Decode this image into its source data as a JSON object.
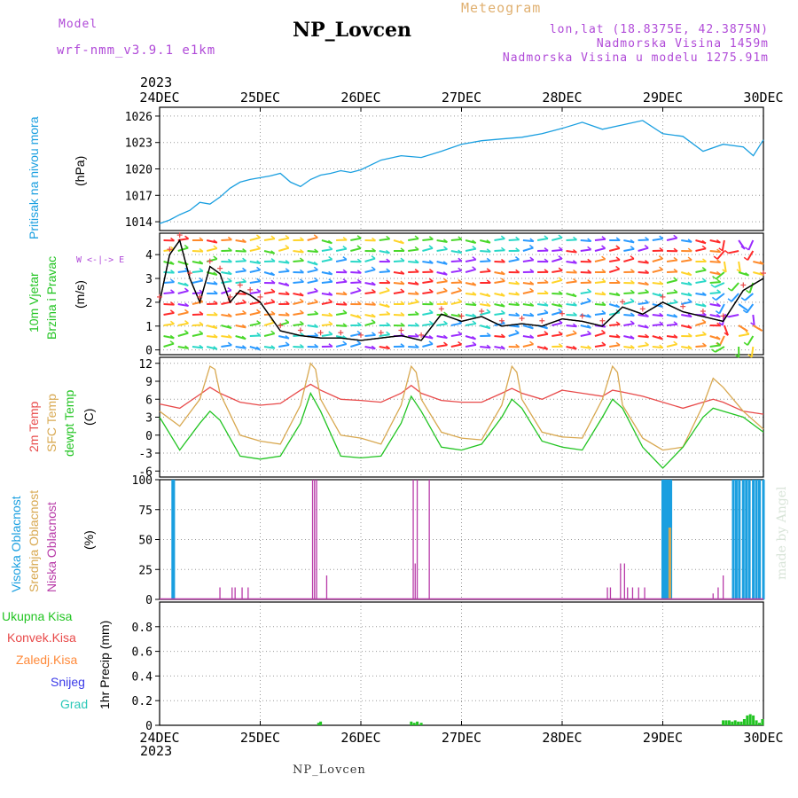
{
  "header": {
    "model_label": "Model",
    "model_name": "wrf-nmm_v3.9.1 e1km",
    "station_title": "NP_Lovcen",
    "meteogram_label": "Meteogram",
    "lonlat": "lon,lat (18.8375E, 42.3875N)",
    "elevation": "Nadmorska Visina 1459m",
    "model_elevation": "Nadmorska Visina u modelu 1275.91m"
  },
  "footer": {
    "station": "NP_Lovcen",
    "signature": "made by Angel"
  },
  "time_axis": {
    "year": "2023",
    "ticks": [
      "24DEC",
      "25DEC",
      "26DEC",
      "27DEC",
      "28DEC",
      "29DEC",
      "30DEC"
    ]
  },
  "colors": {
    "pressure": "#1a9fe0",
    "temp2m": "#e84a4a",
    "sfc_temp": "#d8a850",
    "dewpt": "#22c422",
    "high_cloud": "#1a9fe0",
    "mid_cloud": "#d8a850",
    "low_cloud": "#b83aa8",
    "precip": "#22c422"
  },
  "panels": {
    "pressure": {
      "labels": [
        "Pritisak na nivou mora",
        "(hPa)"
      ]
    },
    "wind": {
      "labels": [
        "10m Vjetar",
        "Brzina i Pravac",
        "(m/s)"
      ],
      "compass": "W <-|-> E"
    },
    "temperature": {
      "labels": [
        "2m Temp",
        "SFC Temp",
        "dewpt Temp",
        "(C)"
      ]
    },
    "cloud": {
      "labels": [
        "Visoka Oblacnost",
        "Srednja Oblacnost",
        "Niska Oblacnost",
        "(%)"
      ]
    },
    "precip": {
      "labels": [
        "Ukupna Kisa",
        "Konvek.Kisa",
        "Zaledj.Kisa",
        "Snijeg",
        "Grad",
        "1hr Precip (mm)"
      ]
    }
  },
  "chart_data": [
    {
      "type": "line",
      "panel": "pressure",
      "ylabel": "(hPa)",
      "ylim": [
        1013,
        1027
      ],
      "yticks": [
        1014,
        1017,
        1020,
        1023,
        1026
      ],
      "grid": true,
      "x_unit": "days since 24DEC 00UTC",
      "series": [
        {
          "name": "Pritisak na nivou mora",
          "color": "#1a9fe0",
          "x": [
            0,
            0.1,
            0.2,
            0.3,
            0.4,
            0.5,
            0.6,
            0.7,
            0.8,
            0.9,
            1.0,
            1.1,
            1.2,
            1.3,
            1.4,
            1.5,
            1.6,
            1.7,
            1.8,
            1.9,
            2.0,
            2.2,
            2.4,
            2.6,
            2.8,
            3.0,
            3.2,
            3.4,
            3.6,
            3.8,
            4.0,
            4.2,
            4.4,
            4.6,
            4.8,
            5.0,
            5.2,
            5.4,
            5.6,
            5.8,
            5.9,
            6.0
          ],
          "values": [
            1013.8,
            1014.2,
            1014.8,
            1015.3,
            1016.2,
            1016.0,
            1016.8,
            1017.8,
            1018.5,
            1018.8,
            1019.0,
            1019.2,
            1019.5,
            1018.5,
            1018.0,
            1018.8,
            1019.3,
            1019.5,
            1019.8,
            1019.6,
            1019.9,
            1021.0,
            1021.5,
            1021.3,
            1022.0,
            1022.8,
            1023.2,
            1023.4,
            1023.6,
            1024.0,
            1024.6,
            1025.3,
            1024.5,
            1025.0,
            1025.5,
            1024.0,
            1023.7,
            1022.0,
            1022.8,
            1022.5,
            1021.5,
            1023.3
          ]
        }
      ]
    },
    {
      "type": "line",
      "panel": "wind",
      "ylabel": "(m/s)",
      "ylim": [
        -0.2,
        4.9
      ],
      "yticks": [
        0,
        1,
        2,
        3,
        4
      ],
      "grid": true,
      "x_unit": "days since 24DEC 00UTC",
      "series": [
        {
          "name": "wind speed",
          "color": "#000000",
          "x": [
            0,
            0.1,
            0.2,
            0.3,
            0.4,
            0.5,
            0.6,
            0.7,
            0.8,
            0.9,
            1.0,
            1.2,
            1.4,
            1.6,
            1.8,
            2.0,
            2.2,
            2.4,
            2.6,
            2.8,
            3.0,
            3.2,
            3.4,
            3.6,
            3.8,
            4.0,
            4.2,
            4.4,
            4.6,
            4.8,
            5.0,
            5.2,
            5.4,
            5.6,
            5.8,
            6.0
          ],
          "values": [
            2.0,
            4.0,
            4.6,
            3.0,
            2.0,
            3.5,
            3.2,
            2.0,
            2.5,
            2.3,
            2.0,
            0.8,
            0.6,
            0.5,
            0.5,
            0.4,
            0.5,
            0.6,
            0.4,
            1.5,
            1.2,
            1.4,
            1.0,
            1.1,
            1.0,
            1.3,
            1.2,
            1.0,
            1.8,
            1.5,
            2.0,
            1.6,
            1.4,
            1.2,
            2.5,
            3.0
          ]
        }
      ]
    },
    {
      "type": "line",
      "panel": "temperature",
      "ylabel": "(C)",
      "ylim": [
        -7,
        13
      ],
      "yticks": [
        -6,
        -3,
        0,
        3,
        6,
        9,
        12
      ],
      "grid": true,
      "x_unit": "days since 24DEC 00UTC",
      "series": [
        {
          "name": "2m Temp",
          "color": "#e84a4a",
          "x": [
            0,
            0.2,
            0.4,
            0.5,
            0.6,
            0.8,
            1.0,
            1.2,
            1.4,
            1.5,
            1.6,
            1.8,
            2.0,
            2.2,
            2.4,
            2.5,
            2.6,
            2.8,
            3.0,
            3.2,
            3.4,
            3.5,
            3.6,
            3.8,
            4.0,
            4.2,
            4.4,
            4.5,
            4.6,
            4.8,
            5.0,
            5.2,
            5.4,
            5.5,
            5.6,
            5.8,
            6.0
          ],
          "values": [
            5.2,
            4.5,
            6.8,
            8.0,
            7.0,
            5.5,
            5.0,
            5.3,
            7.5,
            8.5,
            7.5,
            6.0,
            5.8,
            5.5,
            7.0,
            8.3,
            7.0,
            5.8,
            5.5,
            5.5,
            7.0,
            7.8,
            7.0,
            6.0,
            7.5,
            7.0,
            6.5,
            7.5,
            7.2,
            6.5,
            5.5,
            4.5,
            5.5,
            6.0,
            5.5,
            4.0,
            3.5
          ]
        },
        {
          "name": "SFC Temp",
          "color": "#d8a850",
          "x": [
            0,
            0.2,
            0.4,
            0.5,
            0.55,
            0.6,
            0.8,
            1.0,
            1.2,
            1.4,
            1.5,
            1.55,
            1.6,
            1.8,
            2.0,
            2.2,
            2.4,
            2.5,
            2.55,
            2.6,
            2.8,
            3.0,
            3.2,
            3.4,
            3.5,
            3.55,
            3.6,
            3.8,
            4.0,
            4.2,
            4.4,
            4.5,
            4.55,
            4.6,
            4.8,
            5.0,
            5.2,
            5.4,
            5.5,
            5.6,
            5.8,
            6.0
          ],
          "values": [
            4.0,
            1.5,
            6.0,
            11.5,
            11.0,
            7.0,
            0.0,
            -1.0,
            -1.5,
            5.0,
            12.0,
            11.0,
            6.0,
            0.0,
            -0.5,
            -1.5,
            5.0,
            11.5,
            10.5,
            6.0,
            0.5,
            -0.5,
            -0.8,
            5.0,
            11.5,
            10.5,
            6.0,
            0.5,
            -0.3,
            -0.5,
            6.0,
            11.5,
            10.5,
            5.0,
            -0.5,
            -2.5,
            -2.0,
            5.0,
            9.5,
            8.0,
            4.0,
            1.0
          ]
        },
        {
          "name": "dewpt Temp",
          "color": "#22c422",
          "x": [
            0,
            0.2,
            0.4,
            0.5,
            0.6,
            0.8,
            1.0,
            1.2,
            1.4,
            1.5,
            1.6,
            1.8,
            2.0,
            2.2,
            2.4,
            2.5,
            2.6,
            2.8,
            3.0,
            3.2,
            3.4,
            3.5,
            3.6,
            3.8,
            4.0,
            4.2,
            4.4,
            4.5,
            4.6,
            4.8,
            5.0,
            5.2,
            5.4,
            5.5,
            5.6,
            5.8,
            6.0
          ],
          "values": [
            3.0,
            -2.5,
            2.0,
            4.0,
            2.5,
            -3.5,
            -4.0,
            -3.5,
            2.0,
            7.0,
            4.0,
            -3.5,
            -3.8,
            -3.5,
            2.0,
            6.5,
            4.0,
            -2.0,
            -2.5,
            -1.5,
            3.0,
            6.0,
            4.5,
            -1.0,
            -2.0,
            -2.5,
            3.0,
            6.0,
            4.5,
            -2.0,
            -5.5,
            -2.0,
            3.0,
            4.5,
            4.0,
            3.0,
            0.5
          ]
        }
      ]
    },
    {
      "type": "bar",
      "panel": "cloud",
      "ylabel": "(%)",
      "ylim": [
        0,
        100
      ],
      "yticks": [
        0,
        25,
        50,
        75,
        100
      ],
      "grid": true,
      "x_unit": "days since 24DEC 00UTC",
      "series": [
        {
          "name": "Visoka Oblacnost",
          "color": "#1a9fe0",
          "x": [
            0.13,
            0.14,
            5.0,
            5.02,
            5.04,
            5.06,
            5.08,
            5.7,
            5.73,
            5.76,
            5.8,
            5.83,
            5.86,
            5.9,
            5.93,
            5.96,
            6.0
          ],
          "values": [
            100,
            100,
            100,
            100,
            100,
            100,
            100,
            100,
            100,
            100,
            100,
            100,
            100,
            100,
            100,
            100,
            100
          ]
        },
        {
          "name": "Srednja Oblacnost",
          "color": "#d8a850",
          "x": [
            5.07
          ],
          "values": [
            60
          ]
        },
        {
          "name": "Niska Oblacnost",
          "color": "#b83aa8",
          "x": [
            0.6,
            0.72,
            0.75,
            0.82,
            0.88,
            1.52,
            1.54,
            1.56,
            1.66,
            2.52,
            2.54,
            2.56,
            2.68,
            4.45,
            4.48,
            4.58,
            4.62,
            4.65,
            4.7,
            4.76,
            4.82,
            5.5,
            5.55,
            5.6
          ],
          "values": [
            10,
            10,
            10,
            10,
            10,
            100,
            100,
            100,
            20,
            100,
            30,
            100,
            100,
            10,
            10,
            30,
            30,
            10,
            10,
            10,
            10,
            5,
            10,
            20
          ]
        }
      ]
    },
    {
      "type": "bar",
      "panel": "precip",
      "ylabel": "1hr Precip (mm)",
      "ylim": [
        0,
        1.0
      ],
      "yticks": [
        0,
        0.2,
        0.4,
        0.6,
        0.8
      ],
      "grid": true,
      "x_unit": "days since 24DEC 00UTC",
      "series": [
        {
          "name": "Ukupna Kisa",
          "color": "#22c422",
          "x": [
            1.58,
            1.6,
            2.5,
            2.53,
            2.56,
            2.6,
            5.6,
            5.63,
            5.66,
            5.69,
            5.72,
            5.75,
            5.78,
            5.81,
            5.84,
            5.87,
            5.9,
            5.93,
            5.96,
            5.99
          ],
          "values": [
            0.02,
            0.03,
            0.03,
            0.02,
            0.03,
            0.02,
            0.04,
            0.04,
            0.04,
            0.03,
            0.04,
            0.03,
            0.03,
            0.05,
            0.08,
            0.09,
            0.08,
            0.04,
            0.02,
            0.05
          ]
        }
      ]
    },
    {
      "type": "scatter",
      "panel": "wind-barbs",
      "note": "10m wind arrows (direction/speed) drawn across wind panel",
      "colors": [
        "#ff2a2a",
        "#ff8a2a",
        "#ffd42a",
        "#4ad82a",
        "#2ad8c8",
        "#2a9aff",
        "#9a2aff"
      ]
    }
  ]
}
